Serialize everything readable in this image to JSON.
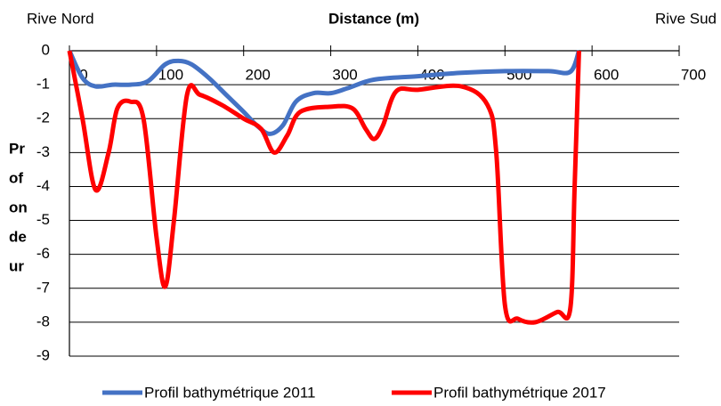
{
  "chart_data": {
    "type": "line",
    "left_label": "Rive Nord",
    "title": "Distance (m)",
    "right_label": "Rive Sud",
    "y_label_lines": [
      "Pr",
      "of",
      "on",
      "de",
      "ur"
    ],
    "xlim": [
      0,
      700
    ],
    "xticks": [
      0,
      100,
      200,
      300,
      400,
      500,
      600,
      700
    ],
    "ylim": [
      -9,
      0
    ],
    "yticks": [
      0,
      -1,
      -2,
      -3,
      -4,
      -5,
      -6,
      -7,
      -8,
      -9
    ],
    "grid": true,
    "legend": "bottom",
    "series": [
      {
        "name": "Profil bathymétrique 2011",
        "color": "#4472c4",
        "x": [
          0,
          15,
          30,
          50,
          70,
          90,
          110,
          125,
          140,
          160,
          180,
          200,
          215,
          230,
          245,
          260,
          280,
          300,
          320,
          350,
          400,
          450,
          500,
          550,
          575,
          585
        ],
        "values": [
          0,
          -0.8,
          -1.05,
          -1,
          -1,
          -0.9,
          -0.4,
          -0.3,
          -0.4,
          -0.8,
          -1.3,
          -1.8,
          -2.2,
          -2.45,
          -2.2,
          -1.5,
          -1.25,
          -1.25,
          -1.1,
          -0.85,
          -0.75,
          -0.65,
          -0.6,
          -0.6,
          -0.62,
          0
        ]
      },
      {
        "name": "Profil bathymétrique 2017",
        "color": "#ff0000",
        "x": [
          0,
          15,
          30,
          45,
          55,
          70,
          85,
          100,
          110,
          120,
          135,
          150,
          175,
          200,
          220,
          235,
          250,
          265,
          300,
          325,
          340,
          350,
          360,
          375,
          400,
          450,
          480,
          490,
          500,
          515,
          535,
          560,
          575,
          580,
          585
        ],
        "values": [
          0,
          -2,
          -4.1,
          -3,
          -1.7,
          -1.5,
          -2,
          -5.5,
          -6.95,
          -5,
          -1.3,
          -1.3,
          -1.6,
          -2,
          -2.3,
          -3,
          -2.5,
          -1.8,
          -1.65,
          -1.7,
          -2.3,
          -2.6,
          -2.2,
          -1.2,
          -1.15,
          -1.05,
          -1.6,
          -3,
          -7.5,
          -7.9,
          -8,
          -7.7,
          -7.6,
          -4,
          0
        ]
      }
    ]
  }
}
